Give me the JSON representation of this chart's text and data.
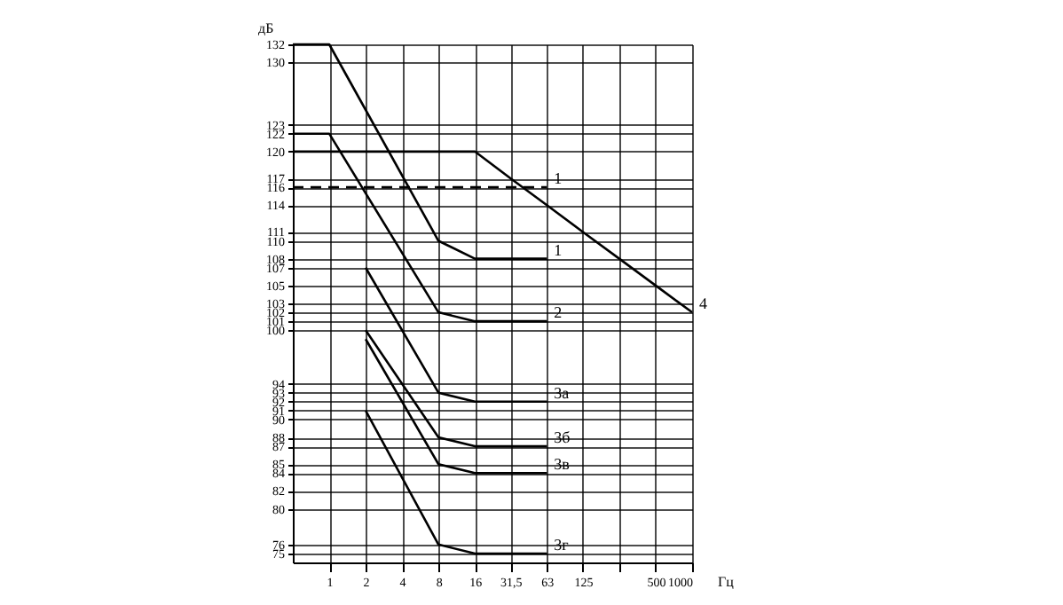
{
  "chart_data": {
    "type": "line",
    "ylabel": "дБ",
    "xlabel": "Гц",
    "log": "x",
    "grid": true,
    "legend": false,
    "xlim": [
      0.5,
      1000
    ],
    "xticks": [
      1,
      2,
      4,
      8,
      16,
      {
        "value": 31.5,
        "label": "31,5"
      },
      63,
      125,
      {
        "value": 250,
        "label": null
      },
      500,
      1000
    ],
    "ylim": [
      74,
      132
    ],
    "yticks": [
      75,
      76,
      80,
      82,
      84,
      85,
      87,
      88,
      90,
      91,
      92,
      93,
      94,
      100,
      101,
      102,
      103,
      105,
      107,
      108,
      110,
      111,
      114,
      116,
      117,
      120,
      122,
      123,
      130,
      132
    ],
    "series": [
      {
        "name": "1",
        "color": "#000000",
        "line_style": "dashed",
        "x": [
          0.5,
          63
        ],
        "values": [
          116,
          116
        ]
      },
      {
        "name": "1",
        "color": "#000000",
        "line_style": "solid",
        "x": [
          0.5,
          1,
          8,
          16,
          63
        ],
        "values": [
          132,
          132,
          110,
          108,
          108
        ]
      },
      {
        "name": "2",
        "color": "#000000",
        "line_style": "solid",
        "x": [
          0.5,
          1,
          8,
          16,
          63
        ],
        "values": [
          122,
          122,
          102,
          101,
          101
        ]
      },
      {
        "name": "3а",
        "color": "#000000",
        "line_style": "solid",
        "x": [
          2,
          8,
          16,
          63
        ],
        "values": [
          107,
          93,
          92,
          92
        ]
      },
      {
        "name": "3б",
        "color": "#000000",
        "line_style": "solid",
        "x": [
          2,
          8,
          16,
          63
        ],
        "values": [
          100,
          88,
          87,
          87
        ]
      },
      {
        "name": "3в",
        "color": "#000000",
        "line_style": "solid",
        "x": [
          2,
          8,
          16,
          63
        ],
        "values": [
          99,
          85,
          84,
          84
        ]
      },
      {
        "name": "3г",
        "color": "#000000",
        "line_style": "solid",
        "x": [
          2,
          8,
          16,
          63
        ],
        "values": [
          91,
          76,
          75,
          75
        ]
      },
      {
        "name": "4",
        "color": "#000000",
        "line_style": "solid",
        "x": [
          0.5,
          16,
          31.5,
          63,
          125,
          250,
          500,
          1000
        ],
        "values": [
          120,
          120,
          117,
          114,
          111,
          108,
          105,
          102
        ]
      }
    ]
  }
}
